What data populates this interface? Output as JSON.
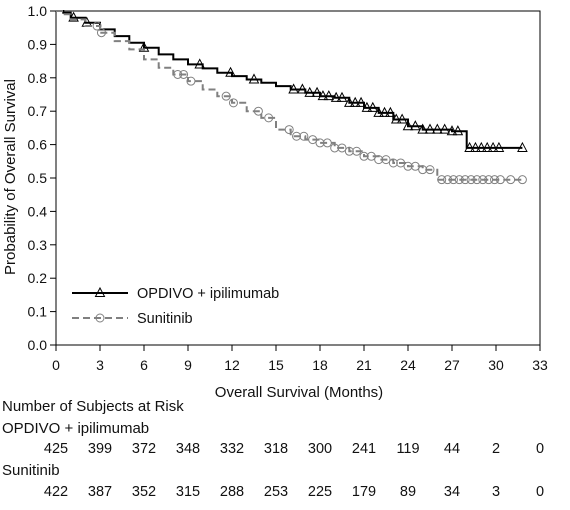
{
  "chart_data": {
    "type": "line",
    "title": "",
    "xlabel": "Overall Survival (Months)",
    "ylabel": "Probability of Overall Survival",
    "xlim": [
      0,
      33
    ],
    "ylim": [
      0,
      1.0
    ],
    "x_ticks": [
      "0",
      "3",
      "6",
      "9",
      "12",
      "15",
      "18",
      "21",
      "24",
      "27",
      "30",
      "33"
    ],
    "y_ticks": [
      "0.0",
      "0.1",
      "0.2",
      "0.3",
      "0.4",
      "0.5",
      "0.6",
      "0.7",
      "0.8",
      "0.9",
      "1.0"
    ],
    "grid": false,
    "legend_placement": "bottom-left",
    "series": [
      {
        "name": "OPDIVO + ipilimumab",
        "color": "#000000",
        "line_style": "solid",
        "marker": "triangle",
        "x": [
          0,
          0.5,
          1,
          2,
          3,
          4,
          5,
          6,
          7,
          8,
          9,
          10,
          11,
          12,
          13,
          14,
          15,
          16,
          17,
          18,
          19,
          20,
          21,
          22,
          23,
          24,
          25,
          26,
          27,
          28,
          29,
          30,
          31,
          31.8
        ],
        "y": [
          1.0,
          0.995,
          0.98,
          0.965,
          0.945,
          0.925,
          0.905,
          0.89,
          0.87,
          0.855,
          0.84,
          0.828,
          0.815,
          0.805,
          0.795,
          0.785,
          0.775,
          0.765,
          0.755,
          0.745,
          0.74,
          0.725,
          0.71,
          0.695,
          0.675,
          0.655,
          0.645,
          0.645,
          0.64,
          0.59,
          0.59,
          0.59,
          0.59,
          0.59
        ],
        "censor_x": [
          1.2,
          2.1,
          6.0,
          9.8,
          11.9,
          13.5,
          16.2,
          16.8,
          17.3,
          17.8,
          18.2,
          18.6,
          19.1,
          19.5,
          20.0,
          20.4,
          20.8,
          21.2,
          21.6,
          22.0,
          22.4,
          22.8,
          23.2,
          23.6,
          24.0,
          24.5,
          25.0,
          25.5,
          26.0,
          26.5,
          27.0,
          27.4,
          28.2,
          28.6,
          29.0,
          29.4,
          29.8,
          30.2,
          31.8
        ]
      },
      {
        "name": "Sunitinib",
        "color": "#808080",
        "line_style": "dashed",
        "marker": "circle",
        "x": [
          0,
          0.5,
          1,
          2,
          3,
          4,
          5,
          6,
          7,
          8,
          9,
          10,
          11,
          12,
          13,
          14,
          15,
          16,
          17,
          18,
          19,
          20,
          21,
          22,
          23,
          24,
          25,
          25.8,
          26,
          27,
          28,
          29,
          30,
          31,
          31.8
        ],
        "y": [
          1.0,
          0.99,
          0.975,
          0.955,
          0.935,
          0.91,
          0.885,
          0.855,
          0.83,
          0.81,
          0.79,
          0.765,
          0.745,
          0.725,
          0.7,
          0.68,
          0.645,
          0.625,
          0.615,
          0.605,
          0.59,
          0.58,
          0.565,
          0.555,
          0.545,
          0.535,
          0.525,
          0.525,
          0.495,
          0.495,
          0.495,
          0.495,
          0.495,
          0.495,
          0.495
        ],
        "censor_x": [
          2.8,
          3.1,
          8.3,
          8.7,
          9.2,
          11.6,
          12.1,
          13.8,
          14.5,
          15.9,
          16.4,
          16.9,
          17.5,
          18.0,
          18.5,
          19.0,
          19.5,
          20.0,
          20.5,
          21.0,
          21.5,
          22.0,
          22.5,
          23.0,
          23.5,
          24.0,
          24.5,
          25.0,
          25.5,
          26.3,
          26.7,
          27.1,
          27.5,
          27.9,
          28.3,
          28.7,
          29.1,
          29.5,
          29.9,
          30.3,
          31.0,
          31.8
        ]
      }
    ],
    "risk_table": {
      "title": "Number of Subjects at Risk",
      "times": [
        0,
        3,
        6,
        9,
        12,
        15,
        18,
        21,
        24,
        27,
        30,
        33
      ],
      "rows": [
        {
          "label": "OPDIVO + ipilimumab",
          "counts": [
            "425",
            "399",
            "372",
            "348",
            "332",
            "318",
            "300",
            "241",
            "119",
            "44",
            "2",
            "0"
          ]
        },
        {
          "label": "Sunitinib",
          "counts": [
            "422",
            "387",
            "352",
            "315",
            "288",
            "253",
            "225",
            "179",
            "89",
            "34",
            "3",
            "0"
          ]
        }
      ]
    }
  }
}
